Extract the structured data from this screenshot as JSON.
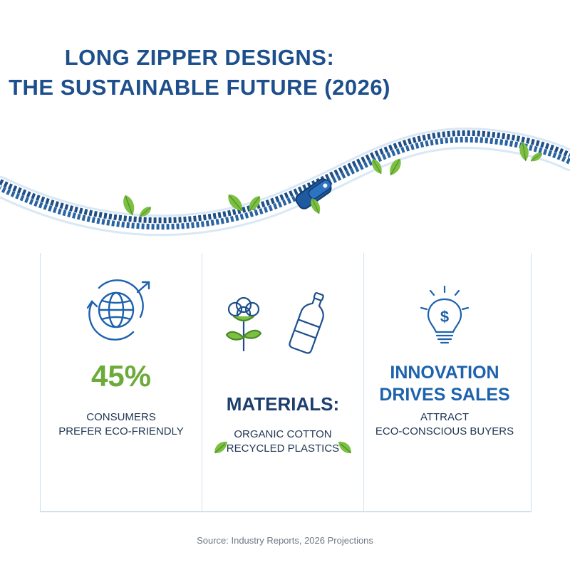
{
  "title": {
    "line1": "LONG ZIPPER DESIGNS:",
    "line2": "THE SUSTAINABLE FUTURE (2026)"
  },
  "colors": {
    "navy": "#1d4f8c",
    "green": "#6cab3a",
    "blue": "#1d62ad",
    "divider": "#cfe0ef"
  },
  "panels": [
    {
      "icon": "globe-recycle-icon",
      "stat": "45%",
      "sub_line1": "CONSUMERS",
      "sub_line2": "PREFER ECO-FRIENDLY"
    },
    {
      "icons": [
        "cotton-plant-icon",
        "plastic-bottle-icon"
      ],
      "heading": "MATERIALS:",
      "sub_line1": "ORGANIC COTTON",
      "sub_line2": "RECYCLED PLASTICS"
    },
    {
      "icon": "lightbulb-dollar-icon",
      "heading_line1": "INNOVATION",
      "heading_line2": "DRIVES SALES",
      "sub_line1": "ATTRACT",
      "sub_line2": "ECO-CONSCIOUS BUYERS"
    }
  ],
  "source": "Source: Industry Reports, 2026 Projections"
}
